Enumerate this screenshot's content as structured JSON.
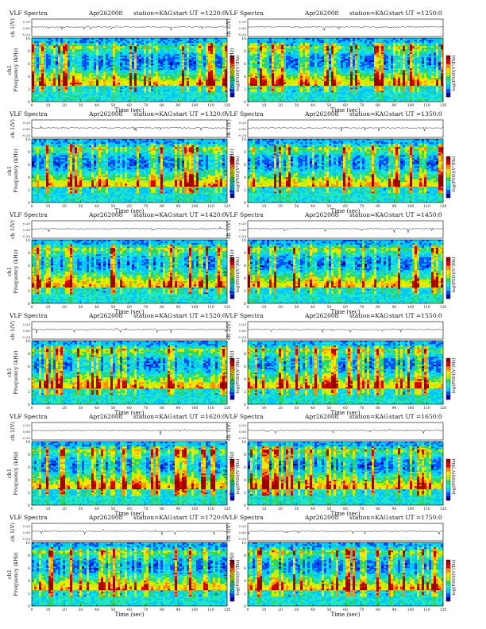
{
  "page": {
    "panel_title": "VLF Spectra",
    "date": "Apr262008",
    "station": "station=KAG",
    "start_prefix": "start  UT  =",
    "ch_label": "ch 1(V)",
    "wave_tick_labels": [
      "0.20",
      "0.00",
      "-0.20"
    ],
    "freq_axis_label": "Frequency  (kHz)",
    "freq_ch_label": "ch1",
    "freq_ticks": [
      0,
      2,
      4,
      6,
      8,
      10
    ],
    "time_axis_label": "Time  (sec)",
    "time_ticks": [
      0,
      10,
      20,
      30,
      40,
      50,
      60,
      70,
      80,
      90,
      100,
      110,
      120
    ],
    "colorbar_label": "log(PSD)(V²/Hz)",
    "colorbar_colors": [
      "#0000a0",
      "#0050ff",
      "#00c8ff",
      "#22e6c8",
      "#2cd56a",
      "#bef000",
      "#ffe600",
      "#ff9000",
      "#e00000",
      "#9a0000"
    ]
  },
  "chart_data": [
    {
      "type": "heatmap",
      "start_ut": "1220:0",
      "xlabel": "Time  (sec)",
      "ylabel": "Frequency  (kHz)",
      "xlim": [
        0,
        120
      ],
      "ylim": [
        0,
        10
      ]
    },
    {
      "type": "heatmap",
      "start_ut": "1250:0",
      "xlabel": "Time  (sec)",
      "ylabel": "Frequency  (kHz)",
      "xlim": [
        0,
        120
      ],
      "ylim": [
        0,
        10
      ]
    },
    {
      "type": "heatmap",
      "start_ut": "1320:0",
      "xlabel": "Time  (sec)",
      "ylabel": "Frequency  (kHz)",
      "xlim": [
        0,
        120
      ],
      "ylim": [
        0,
        10
      ]
    },
    {
      "type": "heatmap",
      "start_ut": "1350:0",
      "xlabel": "Time  (sec)",
      "ylabel": "Frequency  (kHz)",
      "xlim": [
        0,
        120
      ],
      "ylim": [
        0,
        10
      ]
    },
    {
      "type": "heatmap",
      "start_ut": "1420:0",
      "xlabel": "Time  (sec)",
      "ylabel": "Frequency  (kHz)",
      "xlim": [
        0,
        120
      ],
      "ylim": [
        0,
        10
      ]
    },
    {
      "type": "heatmap",
      "start_ut": "1450:0",
      "xlabel": "Time  (sec)",
      "ylabel": "Frequency  (kHz)",
      "xlim": [
        0,
        120
      ],
      "ylim": [
        0,
        10
      ]
    },
    {
      "type": "heatmap",
      "start_ut": "1520:0",
      "xlabel": "Time  (sec)",
      "ylabel": "Frequency  (kHz)",
      "xlim": [
        0,
        120
      ],
      "ylim": [
        0,
        10
      ]
    },
    {
      "type": "heatmap",
      "start_ut": "1550:0",
      "xlabel": "Time  (sec)",
      "ylabel": "Frequency  (kHz)",
      "xlim": [
        0,
        120
      ],
      "ylim": [
        0,
        10
      ]
    },
    {
      "type": "heatmap",
      "start_ut": "1620:0",
      "xlabel": "Time  (sec)",
      "ylabel": "Frequency  (kHz)",
      "xlim": [
        0,
        120
      ],
      "ylim": [
        0,
        10
      ]
    },
    {
      "type": "heatmap",
      "start_ut": "1650:0",
      "xlabel": "Time  (sec)",
      "ylabel": "Frequency  (kHz)",
      "xlim": [
        0,
        120
      ],
      "ylim": [
        0,
        10
      ]
    },
    {
      "type": "heatmap",
      "start_ut": "1720:0",
      "xlabel": "Time  (sec)",
      "ylabel": "Frequency  (kHz)",
      "xlim": [
        0,
        120
      ],
      "ylim": [
        0,
        10
      ]
    },
    {
      "type": "heatmap",
      "start_ut": "1750:0",
      "xlabel": "Time  (sec)",
      "ylabel": "Frequency  (kHz)",
      "xlim": [
        0,
        120
      ],
      "ylim": [
        0,
        10
      ]
    }
  ]
}
